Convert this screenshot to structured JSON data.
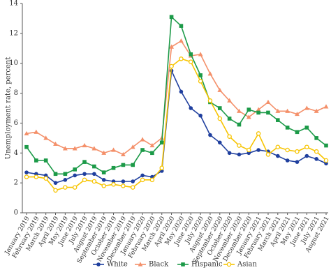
{
  "chart_data": {
    "type": "line",
    "y_label": "Unemployment rate, percent",
    "categories": [
      "January 2019",
      "February 2019",
      "March 2019",
      "April 2019",
      "May 2019",
      "June 2019",
      "July 2019",
      "August 2019",
      "September 2019",
      "October 2019",
      "November 2019",
      "December 2019",
      "January 2020",
      "February 2020",
      "March 2020",
      "April 2020",
      "May 2020",
      "June 2020",
      "July 2020",
      "August 2020",
      "September 2020",
      "October 2020",
      "November 2020",
      "December 2020",
      "January 2021",
      "February 2021",
      "March 2021",
      "April 2021",
      "May 2021",
      "June 2021",
      "July 2021",
      "August 2021"
    ],
    "series": [
      {
        "name": "White",
        "color": "#1f3f9e",
        "marker": "circle",
        "values": [
          2.7,
          2.6,
          2.5,
          2.0,
          2.2,
          2.5,
          2.6,
          2.6,
          2.2,
          2.1,
          2.1,
          2.1,
          2.5,
          2.4,
          2.8,
          9.5,
          8.1,
          7.0,
          6.5,
          5.2,
          4.7,
          4.0,
          3.9,
          4.0,
          4.2,
          4.1,
          3.8,
          3.5,
          3.4,
          3.8,
          3.6,
          3.3
        ]
      },
      {
        "name": "Black",
        "color": "#f4906a",
        "marker": "triangle",
        "values": [
          5.3,
          5.4,
          5.0,
          4.6,
          4.3,
          4.3,
          4.5,
          4.3,
          4.0,
          4.2,
          3.9,
          4.4,
          4.9,
          4.5,
          5.0,
          11.1,
          11.5,
          10.5,
          10.6,
          9.3,
          8.2,
          7.5,
          6.8,
          6.4,
          6.9,
          7.4,
          6.8,
          6.8,
          6.6,
          7.0,
          6.8,
          7.1
        ]
      },
      {
        "name": "Hispanic",
        "color": "#1c9a48",
        "marker": "square",
        "values": [
          4.4,
          3.5,
          3.5,
          2.6,
          2.6,
          2.9,
          3.4,
          3.1,
          2.7,
          3.0,
          3.2,
          3.2,
          4.2,
          4.0,
          4.7,
          13.1,
          12.5,
          10.6,
          9.2,
          7.4,
          7.0,
          6.3,
          5.9,
          6.9,
          6.7,
          6.7,
          6.2,
          5.7,
          5.4,
          5.7,
          5.0,
          4.5
        ]
      },
      {
        "name": "Asian",
        "color": "#f7c400",
        "marker": "circle-open",
        "values": [
          2.4,
          2.4,
          2.3,
          1.5,
          1.7,
          1.7,
          2.2,
          2.1,
          1.8,
          1.9,
          1.8,
          1.7,
          2.2,
          2.2,
          3.0,
          9.8,
          10.3,
          10.1,
          8.8,
          7.5,
          6.3,
          5.1,
          4.5,
          4.2,
          5.3,
          3.9,
          4.4,
          4.2,
          4.1,
          4.4,
          4.1,
          3.5
        ]
      }
    ],
    "ylim": [
      0,
      14
    ],
    "yticks": [
      0,
      2,
      4,
      6,
      8,
      10,
      12,
      14
    ],
    "legend": "bottom"
  }
}
